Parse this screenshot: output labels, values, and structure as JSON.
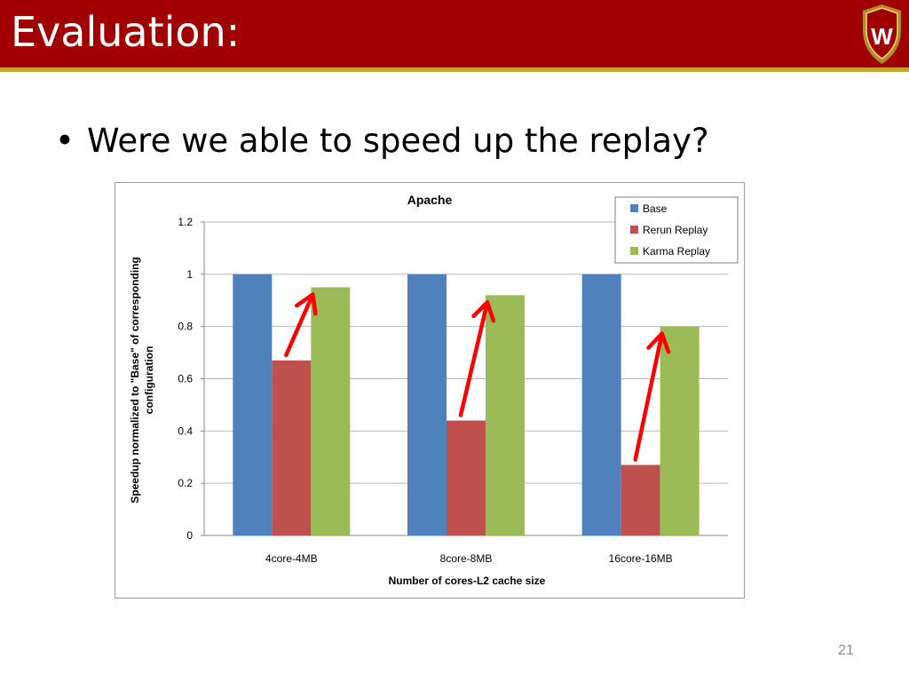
{
  "slide": {
    "title": "Evaluation:",
    "bullet": "Were we able to speed up the replay?",
    "page_number": "21",
    "colors": {
      "header": "#a00000",
      "header_stripe": "#c9a437"
    },
    "logo": {
      "icon": "university-crest-icon",
      "letter": "W"
    }
  },
  "chart_data": {
    "type": "bar",
    "title": "Apache",
    "xlabel": "Number of cores-L2 cache size",
    "ylabel_lines": [
      "Speedup normalized to \"Base\" of corresponding",
      "configuration"
    ],
    "categories": [
      "4core-4MB",
      "8core-8MB",
      "16core-16MB"
    ],
    "series": [
      {
        "name": "Base",
        "color": "#4f81bd",
        "values": [
          1.0,
          1.0,
          1.0
        ]
      },
      {
        "name": "Rerun Replay",
        "color": "#c0504d",
        "values": [
          0.67,
          0.44,
          0.27
        ]
      },
      {
        "name": "Karma Replay",
        "color": "#9bbb59",
        "values": [
          0.95,
          0.92,
          0.8
        ]
      }
    ],
    "ylim": [
      0,
      1.2
    ],
    "yticks": [
      "0",
      "0.2",
      "0.4",
      "0.6",
      "0.8",
      "1",
      "1.2"
    ],
    "grid": true,
    "legend_position": "top-right",
    "annotations": {
      "type": "arrows",
      "color": "#ff0000",
      "description": "red arrows from Rerun Replay up to Karma Replay"
    }
  }
}
